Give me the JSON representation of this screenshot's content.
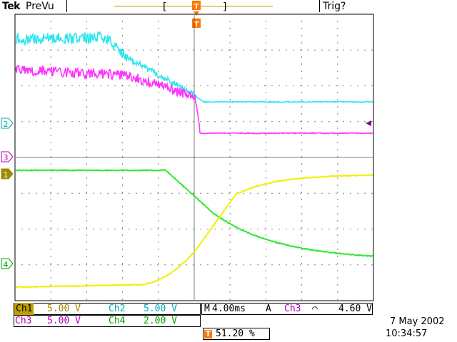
{
  "header": {
    "brand": "Tek",
    "mode": "PreVu",
    "trigger_status": "Trig?"
  },
  "channels": {
    "ch1": {
      "label": "Ch1",
      "scale": "5.00 V",
      "marker": "1",
      "color": "#a08800"
    },
    "ch2": {
      "label": "Ch2",
      "scale": "5.00 V",
      "marker": "2",
      "color": "#00a8b8"
    },
    "ch3": {
      "label": "Ch3",
      "scale": "5.00 V",
      "marker": "3",
      "color": "#b000b0"
    },
    "ch4": {
      "label": "Ch4",
      "scale": "2.00 V",
      "marker": "4",
      "color": "#00a000"
    }
  },
  "timebase": {
    "label": "M",
    "value": "4.00ms"
  },
  "trigger": {
    "mode": "A",
    "source": "Ch3",
    "slope_symbol": "⌒",
    "level": "4.60 V",
    "marker": "T",
    "position": "51.20 %",
    "color": "#ff7700"
  },
  "datetime": {
    "date": "7 May 2002",
    "time": "10:34:57"
  },
  "trace_colors": {
    "cyan": "#2ee6f0",
    "magenta": "#ff33ff",
    "green": "#33e633",
    "yellow": "#f0f000"
  }
}
